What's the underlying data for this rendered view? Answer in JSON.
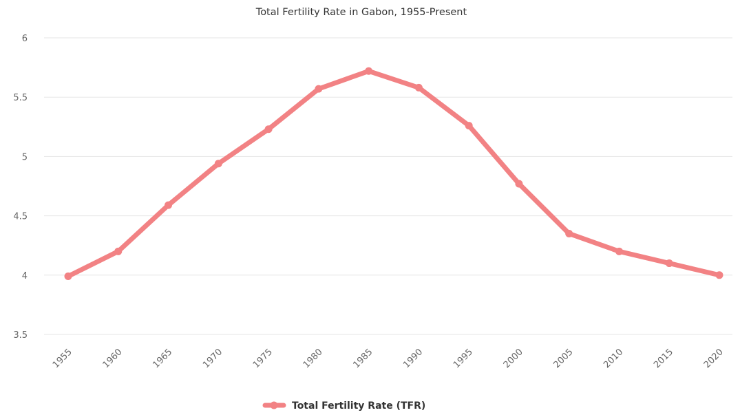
{
  "chart_data": {
    "type": "line",
    "title": "Total Fertility Rate in Gabon, 1955-Present",
    "xlabel": "",
    "ylabel": "",
    "categories": [
      "1955",
      "1960",
      "1965",
      "1970",
      "1975",
      "1980",
      "1985",
      "1990",
      "1995",
      "2000",
      "2005",
      "2010",
      "2015",
      "2020"
    ],
    "y_ticks": [
      "3.5",
      "4",
      "4.5",
      "5",
      "5.5",
      "6"
    ],
    "ylim": [
      3.5,
      6
    ],
    "grid": true,
    "legend_position": "bottom-center",
    "series": [
      {
        "name": "Total Fertility Rate (TFR)",
        "color": "#f28284",
        "values": [
          3.99,
          4.2,
          4.59,
          4.94,
          5.23,
          5.57,
          5.72,
          5.58,
          5.26,
          4.77,
          4.35,
          4.2,
          4.1,
          4.0
        ]
      }
    ]
  }
}
